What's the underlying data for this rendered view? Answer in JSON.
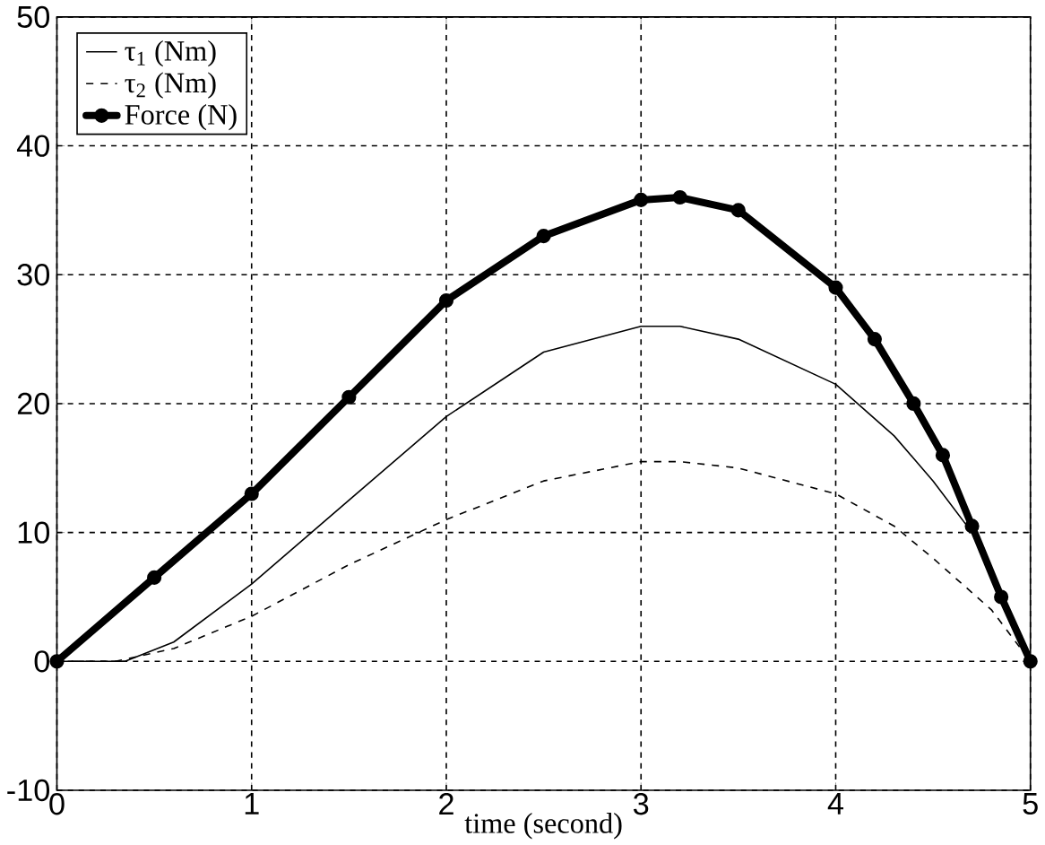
{
  "chart_data": {
    "type": "line",
    "xlabel": "time (second)",
    "xlim": [
      0,
      5
    ],
    "ylim": [
      -10,
      50
    ],
    "xticks": [
      0,
      1,
      2,
      3,
      4,
      5
    ],
    "yticks": [
      -10,
      0,
      10,
      20,
      30,
      40,
      50
    ],
    "grid": true,
    "legend": "top left",
    "series": [
      {
        "name": "τ$_{1}$ (Nm)",
        "color": "#000000",
        "line_style": "solid",
        "marker": "none",
        "x": [
          0,
          0.35,
          0.6,
          1,
          1.5,
          2,
          2.5,
          3,
          3.2,
          3.5,
          4,
          4.3,
          4.5,
          4.7,
          4.85,
          5
        ],
        "values": [
          0,
          0,
          1.5,
          6,
          12.5,
          19,
          24,
          26,
          26,
          25,
          21.5,
          17.5,
          14,
          10,
          5.5,
          0
        ]
      },
      {
        "name": "τ$_{2}$ (Nm)",
        "color": "#000000",
        "line_style": "dashed",
        "marker": "none",
        "x": [
          0,
          0.3,
          0.6,
          1,
          1.5,
          2,
          2.5,
          3,
          3.2,
          3.5,
          4,
          4.3,
          4.5,
          4.8,
          5
        ],
        "values": [
          0,
          0,
          1,
          3.5,
          7.5,
          11,
          14,
          15.5,
          15.5,
          15,
          13,
          10.5,
          8,
          4,
          0
        ]
      },
      {
        "name": "Force (N)",
        "color": "#000000",
        "line_style": "solid",
        "marker": "circle",
        "x": [
          0,
          0.5,
          1,
          1.5,
          2,
          2.5,
          3,
          3.2,
          3.5,
          4,
          4.2,
          4.4,
          4.55,
          4.7,
          4.85,
          5
        ],
        "values": [
          0,
          6.5,
          13,
          20.5,
          28,
          33,
          35.8,
          36,
          35,
          29,
          25,
          20,
          16,
          10.5,
          5,
          0
        ]
      }
    ]
  }
}
